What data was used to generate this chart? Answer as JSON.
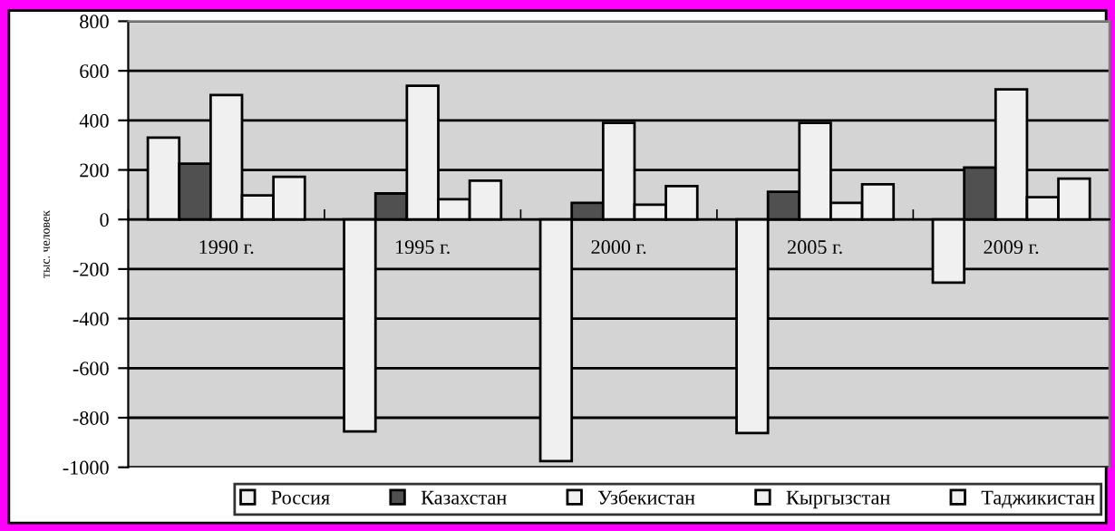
{
  "chart_data": {
    "type": "bar",
    "ylabel": "тыс. человек",
    "categories": [
      "1990 г.",
      "1995 г.",
      "2000 г.",
      "2005 г.",
      "2009 г."
    ],
    "series": [
      {
        "name": "Россия",
        "color": "#f0f0f0",
        "values": [
          330,
          -855,
          -975,
          -862,
          -255
        ]
      },
      {
        "name": "Казахстан",
        "color": "#505050",
        "values": [
          225,
          105,
          67,
          112,
          210
        ]
      },
      {
        "name": "Узбекистан",
        "color": "#f0f0f0",
        "values": [
          502,
          540,
          390,
          390,
          525
        ]
      },
      {
        "name": "Кыргызстан",
        "color": "#f0f0f0",
        "values": [
          97,
          82,
          60,
          67,
          90
        ]
      },
      {
        "name": "Таджикистан",
        "color": "#f0f0f0",
        "values": [
          172,
          157,
          135,
          142,
          165
        ]
      }
    ],
    "ylim": [
      -1000,
      800
    ],
    "yticks": [
      -1000,
      -800,
      -600,
      -400,
      -200,
      0,
      200,
      400,
      600,
      800
    ],
    "grid": "y",
    "legend": "bottom"
  }
}
